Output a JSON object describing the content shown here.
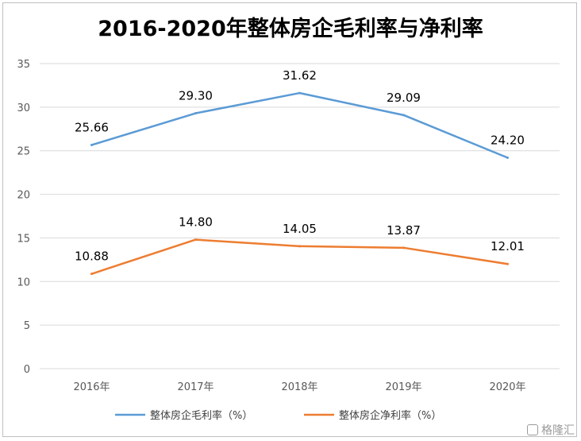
{
  "chart_data": {
    "type": "line",
    "title": "2016-2020年整体房企毛利率与净利率",
    "categories": [
      "2016年",
      "2017年",
      "2018年",
      "2019年",
      "2020年"
    ],
    "ylim": [
      0,
      35
    ],
    "yticks": [
      0,
      5,
      10,
      15,
      20,
      25,
      30,
      35
    ],
    "grid": true,
    "legend_position": "bottom",
    "series": [
      {
        "name": "整体房企毛利率（%）",
        "color": "#5b9bd5",
        "values": [
          25.66,
          29.3,
          31.62,
          29.09,
          24.2
        ],
        "labels": [
          "25.66",
          "29.30",
          "31.62",
          "29.09",
          "24.20"
        ]
      },
      {
        "name": "整体房企净利率（%）",
        "color": "#ed7d31",
        "values": [
          10.88,
          14.8,
          14.05,
          13.87,
          12.01
        ],
        "labels": [
          "10.88",
          "14.80",
          "14.05",
          "13.87",
          "12.01"
        ]
      }
    ]
  },
  "watermark": {
    "text": "格隆汇",
    "icon": "g-logo-icon"
  }
}
